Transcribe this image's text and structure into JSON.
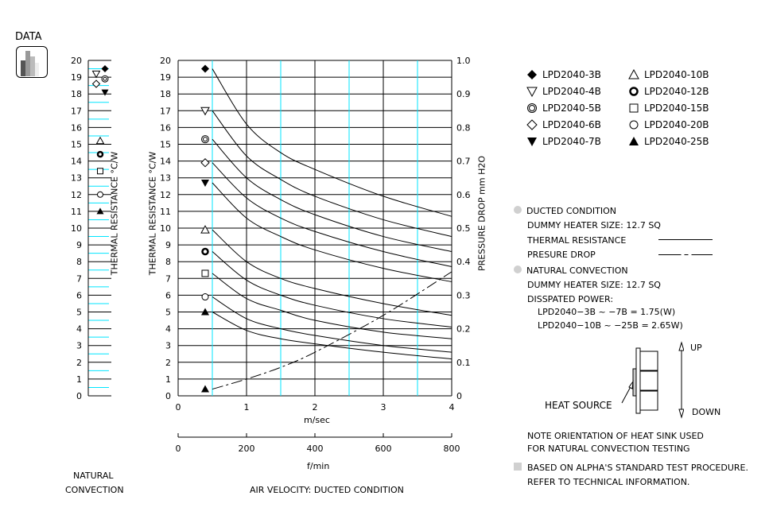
{
  "header": {
    "title": "DATA",
    "icon": "bar-chart-icon"
  },
  "natural_convection_panel": {
    "label_line1": "NATURAL",
    "label_line2": "CONVECTION",
    "ylabel": "THERMAL  RESISTANCE   °C/W",
    "yticks": [
      "0",
      "1",
      "2",
      "3",
      "4",
      "5",
      "6",
      "7",
      "8",
      "9",
      "10",
      "11",
      "12",
      "13",
      "14",
      "15",
      "16",
      "17",
      "18",
      "19",
      "20"
    ],
    "markers": [
      {
        "model": "LPD2040-3B",
        "symbol": "filled-diamond",
        "value": 19.5
      },
      {
        "model": "LPD2040-4B",
        "symbol": "open-down-triangle",
        "value": 19.2
      },
      {
        "model": "LPD2040-5B",
        "symbol": "double-circle",
        "value": 18.9
      },
      {
        "model": "LPD2040-6B",
        "symbol": "open-diamond",
        "value": 18.6
      },
      {
        "model": "LPD2040-7B",
        "symbol": "filled-down-triangle",
        "value": 18.1
      },
      {
        "model": "LPD2040-10B",
        "symbol": "open-triangle",
        "value": 15.2
      },
      {
        "model": "LPD2040-12B",
        "symbol": "bold-circle",
        "value": 14.4
      },
      {
        "model": "LPD2040-15B",
        "symbol": "open-square",
        "value": 13.4
      },
      {
        "model": "LPD2040-20B",
        "symbol": "open-circle",
        "value": 12.0
      },
      {
        "model": "LPD2040-25B",
        "symbol": "filled-triangle",
        "value": 11.0
      }
    ]
  },
  "main_chart": {
    "ylabel_left": "THERMAL  RESISTANCE   °C/W",
    "ylabel_right": "PRESSURE  DROP    mm H2O",
    "xlabel_top": "m/sec",
    "xlabel_bottom": "f/min",
    "caption": "AIR VELOCITY:  DUCTED CONDITION",
    "yticks_left": [
      "0",
      "1",
      "2",
      "3",
      "4",
      "5",
      "6",
      "7",
      "8",
      "9",
      "10",
      "11",
      "12",
      "13",
      "14",
      "15",
      "16",
      "17",
      "18",
      "19",
      "20"
    ],
    "yticks_right": [
      "0",
      "0.1",
      "0.2",
      "0.3",
      "0.4",
      "0.5",
      "0.6",
      "0.7",
      "0.8",
      "0.9",
      "1.0"
    ],
    "xticks_ms": [
      "0",
      "1",
      "2",
      "3",
      "4"
    ],
    "xticks_fmin": [
      "0",
      "200",
      "400",
      "600",
      "800"
    ]
  },
  "chart_data": [
    {
      "type": "scatter",
      "title": "Natural Convection",
      "ylabel": "Thermal Resistance °C/W",
      "ylim": [
        0,
        20
      ],
      "series": [
        {
          "name": "LPD2040-3B",
          "values": [
            19.5
          ]
        },
        {
          "name": "LPD2040-4B",
          "values": [
            19.2
          ]
        },
        {
          "name": "LPD2040-5B",
          "values": [
            18.9
          ]
        },
        {
          "name": "LPD2040-6B",
          "values": [
            18.6
          ]
        },
        {
          "name": "LPD2040-7B",
          "values": [
            18.1
          ]
        },
        {
          "name": "LPD2040-10B",
          "values": [
            15.2
          ]
        },
        {
          "name": "LPD2040-12B",
          "values": [
            14.4
          ]
        },
        {
          "name": "LPD2040-15B",
          "values": [
            13.4
          ]
        },
        {
          "name": "LPD2040-20B",
          "values": [
            12.0
          ]
        },
        {
          "name": "LPD2040-25B",
          "values": [
            11.0
          ]
        }
      ]
    },
    {
      "type": "line",
      "title": "Air Velocity: Ducted Condition",
      "xlabel": "m/sec",
      "xlabel_secondary": "f/min",
      "ylabel": "Thermal Resistance °C/W",
      "ylabel_right": "Pressure Drop mm H2O",
      "xlim": [
        0,
        4
      ],
      "ylim": [
        0,
        20
      ],
      "ylim_right": [
        0,
        1.0
      ],
      "grid": true,
      "legend_position": "right",
      "x": [
        0.5,
        1.0,
        1.5,
        2.0,
        3.0,
        4.0
      ],
      "series": [
        {
          "name": "LPD2040-3B",
          "symbol": "filled-diamond",
          "values": [
            19.5,
            16.2,
            14.5,
            13.5,
            11.9,
            10.7
          ]
        },
        {
          "name": "LPD2040-4B",
          "symbol": "open-down-triangle",
          "values": [
            17.0,
            14.3,
            12.9,
            11.9,
            10.5,
            9.5
          ]
        },
        {
          "name": "LPD2040-5B",
          "symbol": "double-circle",
          "values": [
            15.3,
            13.0,
            11.7,
            10.8,
            9.5,
            8.6
          ]
        },
        {
          "name": "LPD2040-6B",
          "symbol": "open-diamond",
          "values": [
            13.9,
            11.8,
            10.6,
            9.8,
            8.6,
            7.7
          ]
        },
        {
          "name": "LPD2040-7B",
          "symbol": "filled-down-triangle",
          "values": [
            12.7,
            10.6,
            9.5,
            8.7,
            7.6,
            6.8
          ]
        },
        {
          "name": "LPD2040-10B",
          "symbol": "open-triangle",
          "values": [
            9.9,
            8.0,
            7.0,
            6.4,
            5.5,
            4.8
          ]
        },
        {
          "name": "LPD2040-12B",
          "symbol": "bold-circle",
          "values": [
            8.6,
            6.9,
            6.0,
            5.4,
            4.6,
            4.1
          ]
        },
        {
          "name": "LPD2040-15B",
          "symbol": "open-square",
          "values": [
            7.3,
            5.8,
            5.1,
            4.5,
            3.8,
            3.4
          ]
        },
        {
          "name": "LPD2040-20B",
          "symbol": "open-circle",
          "values": [
            5.9,
            4.6,
            4.0,
            3.6,
            3.0,
            2.6
          ]
        },
        {
          "name": "LPD2040-25B",
          "symbol": "filled-triangle",
          "values": [
            5.0,
            3.9,
            3.4,
            3.1,
            2.6,
            2.2
          ]
        },
        {
          "name": "Pressure Drop",
          "axis": "right",
          "style": "dashed",
          "values": [
            0.02,
            0.05,
            0.085,
            0.13,
            0.24,
            0.37
          ]
        }
      ]
    }
  ],
  "legend": {
    "items": [
      {
        "symbol": "filled-diamond",
        "label": "LPD2040-3B"
      },
      {
        "symbol": "open-down-triangle",
        "label": "LPD2040-4B"
      },
      {
        "symbol": "double-circle",
        "label": "LPD2040-5B"
      },
      {
        "symbol": "open-diamond",
        "label": "LPD2040-6B"
      },
      {
        "symbol": "filled-down-triangle",
        "label": "LPD2040-7B"
      },
      {
        "symbol": "open-triangle",
        "label": "LPD2040-10B"
      },
      {
        "symbol": "bold-circle",
        "label": "LPD2040-12B"
      },
      {
        "symbol": "open-square",
        "label": "LPD2040-15B"
      },
      {
        "symbol": "open-circle",
        "label": "LPD2040-20B"
      },
      {
        "symbol": "filled-triangle",
        "label": "LPD2040-25B"
      }
    ]
  },
  "notes": {
    "ducted_title": "DUCTED CONDITION",
    "ducted_heater": "DUMMY HEATER SIZE: 12.7 SQ",
    "thermal_resistance": "THERMAL RESISTANCE",
    "pressure_drop": "PRESURE DROP",
    "natural_title": "NATURAL CONVECTION",
    "natural_heater": "DUMMY HEATER SIZE: 12.7 SQ",
    "dissipated": "DISSPATED POWER:",
    "power_line1": "LPD2040−3B  ~ −7B   = 1.75(W)",
    "power_line2": "LPD2040−10B ~ −25B = 2.65W)",
    "up": "UP",
    "down": "DOWN",
    "heat_source": "HEAT SOURCE",
    "orientation_1": "NOTE ORIENTATION OF HEAT SINK USED",
    "orientation_2": "FOR NATURAL CONVECTION TESTING",
    "footnote_1": "BASED ON ALPHA'S STANDARD TEST PROCEDURE.",
    "footnote_2": "REFER TO TECHNICAL INFORMATION."
  },
  "colors": {
    "grid_major": "#000000",
    "grid_minor": "#00e5ff",
    "bullet": "#d0d0d0"
  }
}
